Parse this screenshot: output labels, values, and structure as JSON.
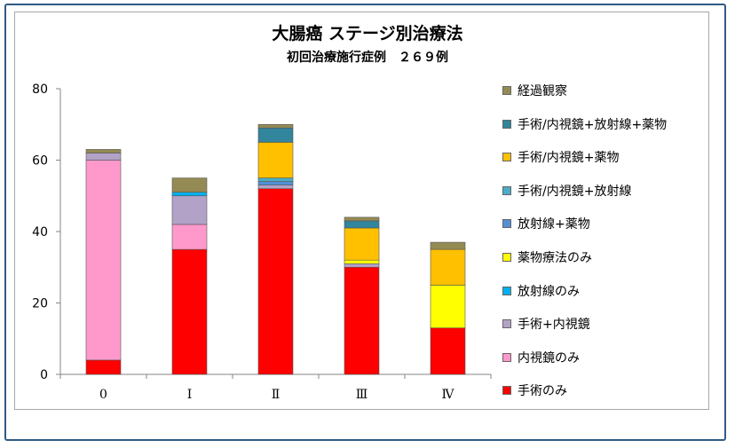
{
  "chart_data": {
    "type": "bar",
    "stacked": true,
    "title": "大腸癌  ステージ別治療法",
    "subtitle": "初回治療施行症例　２６９例",
    "xlabel": "",
    "ylabel": "",
    "ylim": [
      0,
      80
    ],
    "yticks": [
      0,
      20,
      40,
      60,
      80
    ],
    "grid": false,
    "legend_position": "right",
    "categories": [
      "0",
      "Ⅰ",
      "Ⅱ",
      "Ⅲ",
      "Ⅳ"
    ],
    "series": [
      {
        "name": "手術のみ",
        "color": "#ff0000",
        "values": [
          4,
          35,
          52,
          30,
          13
        ]
      },
      {
        "name": "内視鏡のみ",
        "color": "#ff99cc",
        "values": [
          56,
          7,
          0,
          0,
          0
        ]
      },
      {
        "name": "手術+内視鏡",
        "color": "#b3a2c7",
        "values": [
          2,
          8,
          1,
          1,
          0
        ]
      },
      {
        "name": "放射線のみ",
        "color": "#00b0f0",
        "values": [
          0,
          1,
          0,
          0,
          0
        ]
      },
      {
        "name": "薬物療法のみ",
        "color": "#ffff00",
        "values": [
          0,
          0,
          0,
          1,
          12
        ]
      },
      {
        "name": "放射線+薬物",
        "color": "#558ed5",
        "values": [
          0,
          0,
          1,
          0,
          0
        ]
      },
      {
        "name": "手術/内視鏡+放射線",
        "color": "#4bacc6",
        "values": [
          0,
          0,
          1,
          0,
          0
        ]
      },
      {
        "name": "手術/内視鏡+薬物",
        "color": "#ffc000",
        "values": [
          0,
          0,
          10,
          9,
          10
        ]
      },
      {
        "name": "手術/内視鏡+放射線+薬物",
        "color": "#31859c",
        "values": [
          0,
          0,
          4,
          2,
          0
        ]
      },
      {
        "name": "経過観察",
        "color": "#948a54",
        "values": [
          1,
          4,
          1,
          1,
          2
        ]
      }
    ]
  }
}
